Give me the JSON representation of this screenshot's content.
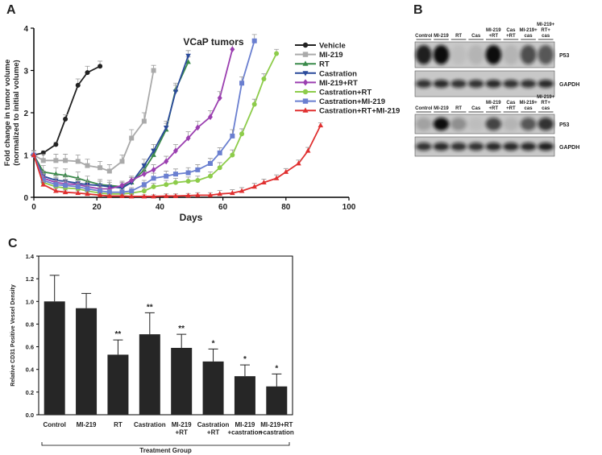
{
  "panel_labels": [
    "A",
    "B",
    "C"
  ],
  "chart_data": [
    {
      "type": "line",
      "title": "VCaP tumors",
      "xlabel": "Days",
      "ylabel": [
        "Fold change in tumor volume",
        "(normalized to initial volume)"
      ],
      "x": [
        0,
        3,
        7,
        10,
        14,
        17,
        21,
        24,
        28,
        31,
        35,
        38,
        42,
        45,
        49,
        52,
        56,
        59,
        63,
        66,
        70,
        73,
        77,
        80,
        84,
        87,
        91
      ],
      "xlim": [
        0,
        100
      ],
      "xticks": [
        0,
        20,
        40,
        60,
        80,
        100
      ],
      "ylim": [
        0,
        4
      ],
      "yticks": [
        0,
        1,
        2,
        3,
        4
      ],
      "series": [
        {
          "name": "Vehicle",
          "color": "#222222",
          "marker": "circle",
          "values": [
            1,
            1.05,
            1.25,
            1.85,
            2.65,
            2.95,
            3.1,
            null,
            null,
            null,
            null,
            null,
            null,
            null,
            null,
            null,
            null,
            null,
            null,
            null,
            null,
            null,
            null,
            null,
            null,
            null,
            null
          ],
          "errors": [
            0.1,
            0.05,
            0.05,
            0.1,
            0.15,
            0.15,
            0.12,
            null,
            null,
            null,
            null,
            null,
            null,
            null,
            null,
            null,
            null,
            null,
            null,
            null,
            null,
            null,
            null,
            null,
            null,
            null,
            null
          ]
        },
        {
          "name": "MI-219",
          "color": "#aaaaaa",
          "marker": "square",
          "values": [
            1,
            0.87,
            0.87,
            0.87,
            0.85,
            0.75,
            0.7,
            0.62,
            0.85,
            1.4,
            1.8,
            3.0,
            null,
            null,
            null,
            null,
            null,
            null,
            null,
            null,
            null,
            null,
            null,
            null,
            null,
            null,
            null
          ],
          "errors": [
            0.1,
            0.15,
            0.15,
            0.15,
            0.15,
            0.15,
            0.15,
            0.15,
            0.15,
            0.2,
            0.2,
            0.12,
            null,
            null,
            null,
            null,
            null,
            null,
            null,
            null,
            null,
            null,
            null,
            null,
            null,
            null,
            null
          ]
        },
        {
          "name": "RT",
          "color": "#3a8a4a",
          "marker": "triangle",
          "values": [
            1,
            0.6,
            0.55,
            0.52,
            0.45,
            0.38,
            0.3,
            0.28,
            0.25,
            0.35,
            0.65,
            1.0,
            1.6,
            2.55,
            3.2,
            null,
            null,
            null,
            null,
            null,
            null,
            null,
            null,
            null,
            null,
            null,
            null
          ],
          "errors": [
            0.1,
            0.15,
            0.15,
            0.15,
            0.15,
            0.12,
            0.12,
            0.12,
            0.1,
            0.12,
            0.15,
            0.15,
            0.15,
            0.15,
            0.12,
            null,
            null,
            null,
            null,
            null,
            null,
            null,
            null,
            null,
            null,
            null,
            null
          ]
        },
        {
          "name": "Castration",
          "color": "#2a4a9a",
          "marker": "triangle-down",
          "values": [
            1,
            0.5,
            0.4,
            0.38,
            0.33,
            0.3,
            0.28,
            0.25,
            0.22,
            0.35,
            0.75,
            1.1,
            1.65,
            2.5,
            3.35,
            null,
            null,
            null,
            null,
            null,
            null,
            null,
            null,
            null,
            null,
            null,
            null
          ],
          "errors": [
            0.1,
            0.12,
            0.12,
            0.12,
            0.12,
            0.1,
            0.1,
            0.1,
            0.1,
            0.12,
            0.15,
            0.15,
            0.15,
            0.15,
            0.12,
            null,
            null,
            null,
            null,
            null,
            null,
            null,
            null,
            null,
            null,
            null,
            null
          ]
        },
        {
          "name": "MI-219+RT",
          "color": "#9b3fb0",
          "marker": "diamond",
          "values": [
            1,
            0.45,
            0.35,
            0.32,
            0.3,
            0.25,
            0.2,
            0.2,
            0.28,
            0.4,
            0.55,
            0.65,
            0.85,
            1.1,
            1.4,
            1.65,
            1.9,
            2.35,
            3.5,
            null,
            null,
            null,
            null,
            null,
            null,
            null,
            null
          ],
          "errors": [
            0.1,
            0.12,
            0.12,
            0.1,
            0.1,
            0.1,
            0.1,
            0.1,
            0.1,
            0.1,
            0.12,
            0.12,
            0.12,
            0.15,
            0.15,
            0.15,
            0.15,
            0.15,
            0.15,
            null,
            null,
            null,
            null,
            null,
            null,
            null,
            null
          ]
        },
        {
          "name": "Castration+RT",
          "color": "#8dcc4a",
          "marker": "circle",
          "values": [
            1,
            0.35,
            0.25,
            0.22,
            0.2,
            0.15,
            0.1,
            0.08,
            0.08,
            0.1,
            0.15,
            0.25,
            0.3,
            0.35,
            0.38,
            0.4,
            0.5,
            0.7,
            1.0,
            1.5,
            2.2,
            2.8,
            3.4,
            null,
            null,
            null,
            null
          ],
          "errors": [
            0.1,
            0.1,
            0.1,
            0.08,
            0.08,
            0.08,
            0.06,
            0.06,
            0.06,
            0.06,
            0.08,
            0.08,
            0.1,
            0.1,
            0.1,
            0.1,
            0.1,
            0.12,
            0.12,
            0.12,
            0.12,
            0.12,
            0.1,
            null,
            null,
            null,
            null
          ]
        },
        {
          "name": "Castration+MI-219",
          "color": "#6a7fd0",
          "marker": "square",
          "values": [
            1,
            0.4,
            0.3,
            0.28,
            0.25,
            0.2,
            0.15,
            0.12,
            0.12,
            0.15,
            0.3,
            0.45,
            0.5,
            0.55,
            0.58,
            0.65,
            0.8,
            1.05,
            1.45,
            2.7,
            3.7,
            null,
            null,
            null,
            null,
            null,
            null
          ],
          "errors": [
            0.1,
            0.1,
            0.1,
            0.1,
            0.08,
            0.08,
            0.08,
            0.06,
            0.06,
            0.08,
            0.1,
            0.12,
            0.12,
            0.12,
            0.12,
            0.12,
            0.12,
            0.12,
            0.15,
            0.15,
            0.15,
            null,
            null,
            null,
            null,
            null,
            null
          ]
        },
        {
          "name": "Castration+RT+MI-219",
          "color": "#e03030",
          "marker": "triangle",
          "values": [
            1,
            0.3,
            0.15,
            0.12,
            0.1,
            0.08,
            0.05,
            0.03,
            0.03,
            0.02,
            0.02,
            0.02,
            0.03,
            0.03,
            0.04,
            0.05,
            0.05,
            0.08,
            0.1,
            0.15,
            0.25,
            0.35,
            0.45,
            0.6,
            0.8,
            1.1,
            1.7
          ],
          "errors": [
            0.1,
            0.08,
            0.06,
            0.05,
            0.05,
            0.05,
            0.04,
            0.04,
            0.04,
            0.04,
            0.04,
            0.04,
            0.05,
            0.05,
            0.05,
            0.06,
            0.06,
            0.08,
            0.08,
            0.08,
            0.08,
            0.08,
            0.08,
            0.08,
            0.08,
            0.08,
            0.06
          ]
        }
      ]
    },
    {
      "type": "bar",
      "xlabel": "Treatment Group",
      "ylabel": "Relative CD31 Positive Vessel Density",
      "categories": [
        [
          "Control"
        ],
        [
          "MI-219"
        ],
        [
          "RT"
        ],
        [
          "Castration"
        ],
        [
          "MI-219",
          "+RT"
        ],
        [
          "Castration",
          "+RT"
        ],
        [
          "MI-219",
          "+castration"
        ],
        [
          "MI-219+RT",
          "+castration"
        ]
      ],
      "values": [
        1.0,
        0.94,
        0.53,
        0.71,
        0.59,
        0.47,
        0.34,
        0.25
      ],
      "errors": [
        0.23,
        0.13,
        0.13,
        0.19,
        0.12,
        0.11,
        0.1,
        0.11
      ],
      "annotations": [
        null,
        null,
        "**",
        "**",
        "**",
        "*",
        "*",
        "*"
      ],
      "color": "#262626",
      "ylim": [
        0,
        1.4
      ],
      "yticks": [
        {
          "value": 0,
          "label": "0.0"
        },
        0.2,
        0.4,
        0.6,
        0.8,
        {
          "value": 1,
          "label": "1.0"
        },
        1.2,
        1.4
      ]
    }
  ],
  "blot": {
    "panels": [
      {
        "lanes": [
          [
            "Control"
          ],
          [
            "MI-219"
          ],
          [
            "RT"
          ],
          [
            "Cas"
          ],
          [
            "MI-219",
            "+RT"
          ],
          [
            "Cas",
            "+RT"
          ],
          [
            "MI-219+",
            "cas"
          ],
          [
            "MI-219+",
            "RT+",
            "cas"
          ]
        ],
        "rows": [
          "P53",
          "GAPDH"
        ]
      },
      {
        "lanes": [
          [
            "Control"
          ],
          [
            "MI-219"
          ],
          [
            "RT"
          ],
          [
            "Cas"
          ],
          [
            "MI-219",
            "+RT"
          ],
          [
            "Cas",
            "+RT"
          ],
          [
            "MI-219+",
            "cas"
          ],
          [
            "MI-219+",
            "RT+",
            "cas"
          ]
        ],
        "rows": [
          "P53",
          "GAPDH"
        ]
      }
    ]
  }
}
